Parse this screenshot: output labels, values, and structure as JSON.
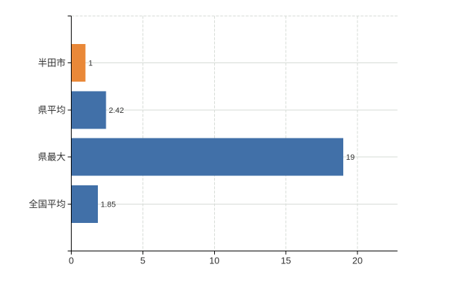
{
  "chart_data": {
    "type": "bar",
    "orientation": "horizontal",
    "title": "",
    "xlabel": "",
    "ylabel": "",
    "legend": "none",
    "categories": [
      "半田市",
      "県平均",
      "県最大",
      "全国平均"
    ],
    "values": [
      1,
      2.42,
      19,
      1.85
    ],
    "value_labels": [
      "1",
      "2.42",
      "19",
      "1.85"
    ],
    "bar_colors": [
      "#E98838",
      "#4170A8",
      "#4170A8",
      "#4170A8"
    ],
    "xlim": [
      0,
      22.8
    ],
    "xticks": [
      0,
      5,
      10,
      15,
      20
    ],
    "xtick_labels": [
      "0",
      "5",
      "10",
      "15",
      "20"
    ],
    "grid": {
      "horizontal_style": "solid",
      "vertical_style": "dashed",
      "top_border_style": "dashed",
      "color": "#D6DBD6"
    },
    "axis_color": "#000000",
    "text_color": "#303030",
    "background": "#FFFFFF"
  }
}
